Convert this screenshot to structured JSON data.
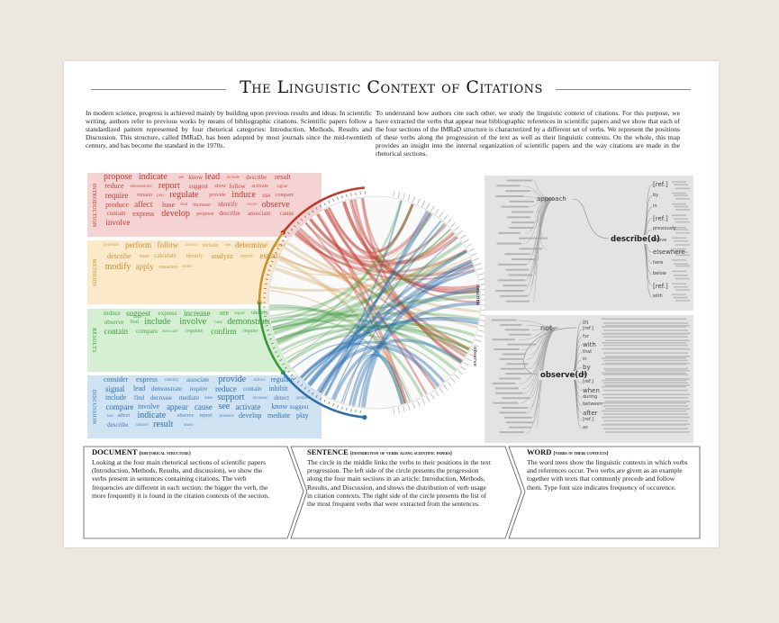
{
  "title": "The Linguistic Context of Citations",
  "intro": {
    "left": "In modern science, progress is achieved mainly by building upon previous results and ideas. In scientific writing, authors refer to previous works by means of bibliographic citations. Scientific papers follow a standardized pattern represented by four rhetorical categories: Introduction, Methods, Results and Discussion. This structure, called IMRaD, has been adopted by most journals since the mid-twentieth century, and has become the standard in the 1970s.",
    "right": "To understand how authors cite each other, we study the linguistic context of citations. For this purpose, we have extracted the verbs that appear near bibliographic references in scientific papers and we show that each of the four sections of the IMRaD structure is characterized by a different set of verbs. We represent the positions of these verbs along the progression of the text as well as their linguistic contexts. On the whole, this map provides an insight into the internal organization of scientific papers and the way citations are made in the rhetorical sections."
  },
  "sections": [
    {
      "label": "INTRODUCTION",
      "color": "#c0392b",
      "bg": "#f6d3d3",
      "words": [
        "propose",
        "indicate",
        "see",
        "know",
        "lead",
        "include",
        "describe",
        "result",
        "reduce",
        "demonstrate",
        "report",
        "suggest",
        "show",
        "follow",
        "activate",
        "signal",
        "require",
        "remain",
        "play",
        "regulate",
        "provide",
        "induce",
        "use",
        "compare",
        "produce",
        "affect",
        "base",
        "find",
        "increase",
        "identify",
        "occur",
        "observe",
        "contain",
        "express",
        "develop",
        "propose",
        "describe",
        "associate",
        "cause",
        "involve"
      ]
    },
    {
      "label": "METHODS",
      "color": "#c8912c",
      "bg": "#fbe9c9",
      "words": [
        "generate",
        "perform",
        "follow",
        "accord",
        "include",
        "use",
        "determine",
        "obtain",
        "describe",
        "base",
        "calculate",
        "identify",
        "analyze",
        "report",
        "estimate",
        "modify",
        "apply",
        "measure",
        "select"
      ]
    },
    {
      "label": "RESULTS",
      "color": "#3a9a3a",
      "bg": "#d5efd2",
      "words": [
        "induce",
        "suggest",
        "express",
        "increase",
        "see",
        "report",
        "identify",
        "show",
        "observe",
        "find",
        "include",
        "involve",
        "base",
        "demonstrate",
        "describe",
        "know",
        "contain",
        "compare",
        "associate",
        "regulate",
        "confirm",
        "require"
      ]
    },
    {
      "label": "DISCUSSION",
      "color": "#2a6fb0",
      "bg": "#cfe3f3",
      "words": [
        "consider",
        "express",
        "identify",
        "associate",
        "provide",
        "follow",
        "regulate",
        "signal",
        "lead",
        "demonstrate",
        "require",
        "reduce",
        "contain",
        "inhibit",
        "include",
        "find",
        "decrease",
        "mediate",
        "base",
        "support",
        "increase",
        "detect",
        "propose",
        "compare",
        "involve",
        "appear",
        "cause",
        "see",
        "activate",
        "know",
        "suggest",
        "use",
        "affect",
        "indicate",
        "observe",
        "report",
        "produce",
        "develop",
        "mediate",
        "play",
        "describe",
        "induce",
        "result",
        "show"
      ]
    }
  ],
  "circle": {
    "label_top": "describe",
    "label_bottom": "observe"
  },
  "trees": [
    {
      "root": "describe(d)",
      "left_word": "approach",
      "right_words": [
        "[ref.]",
        "by",
        "in",
        "[ref.]",
        "previously",
        "above",
        "elsewhere",
        "here",
        "below",
        "[ref.]",
        "with"
      ]
    },
    {
      "root": "observe(d)",
      "left_word": "not",
      "right_words": [
        "in",
        "[ref.]",
        "for",
        "with",
        "that",
        "in",
        "by",
        "at",
        "[ref.]",
        "when",
        "during",
        "between",
        "after",
        "[ref.]",
        "as"
      ]
    }
  ],
  "footer": [
    {
      "title": "DOCUMENT",
      "subtitle": "(rhetorical structure)",
      "text": "Looking at the four main rhetorical sections of scientific papers (Introduction, Methods, Results, and discussion), we show the verbs present in sentences containing citations. The verb frequencies are different in each section: the bigger the verb, the more frequently it is found in the citation contexts of the section."
    },
    {
      "title": "SENTENCE",
      "subtitle": "(distribution of verbs along scientific papers)",
      "text": "The circle in the middle links the verbs to their positions in the text progression. The left side of the circle presents the progression along the four main sections in an article: Introduction, Methods, Results, and Discussion, and shows the distribution of verb usage in citation contexts. The right side of the circle presents the list of the most frequent verbs that were extracted from the sentences."
    },
    {
      "title": "WORD",
      "subtitle": "(verbs in their contexts)",
      "text": "The word trees show the linguistic contexts in which verbs and references occur. Two verbs are given as an example together with texts that commonly precede and follow them. Type font size indicates frequency of occurence."
    }
  ]
}
